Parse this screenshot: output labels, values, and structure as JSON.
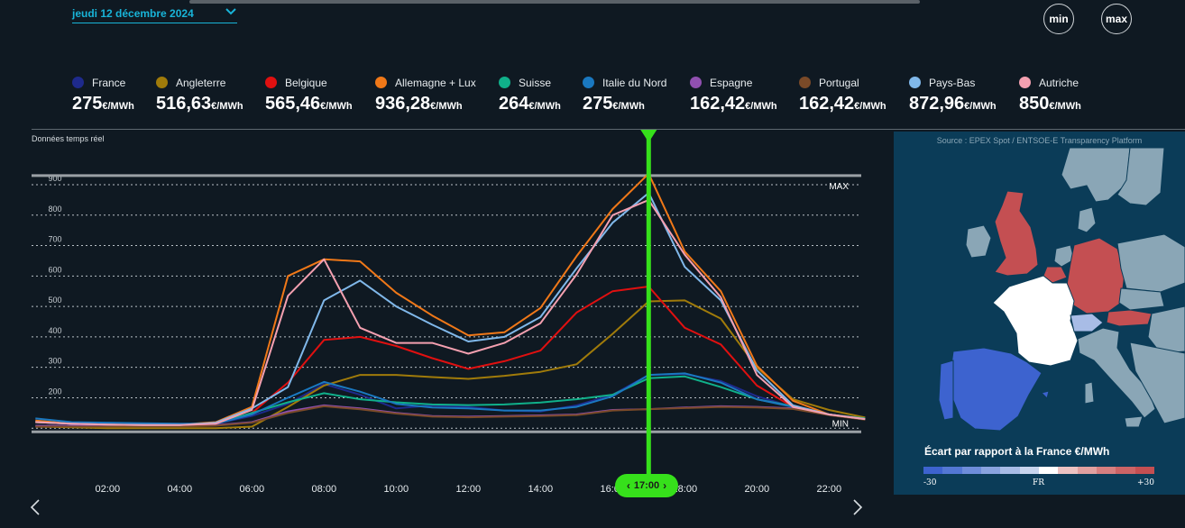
{
  "header": {
    "date_label": "jeudi 12 décembre 2024",
    "min_label": "min",
    "max_label": "max"
  },
  "colors": {
    "accent": "#18b4d8",
    "cursor": "#36e01b",
    "background": "#0f1922",
    "map_bg": "#0b3c58"
  },
  "icons": {
    "date_dropdown": "chevron-down-icon",
    "prev": "chevron-left-icon",
    "next": "chevron-right-icon"
  },
  "legend": [
    {
      "name": "France",
      "price": "275",
      "unit": "€/MWh",
      "color": "#1e2a8c"
    },
    {
      "name": "Angleterre",
      "price": "516,63",
      "unit": "€/MWh",
      "color": "#a07b0a"
    },
    {
      "name": "Belgique",
      "price": "565,46",
      "unit": "€/MWh",
      "color": "#e01010"
    },
    {
      "name": "Allemagne + Lux",
      "price": "936,28",
      "unit": "€/MWh",
      "color": "#f07818"
    },
    {
      "name": "Suisse",
      "price": "264",
      "unit": "€/MWh",
      "color": "#10b08a"
    },
    {
      "name": "Italie du Nord",
      "price": "275",
      "unit": "€/MWh",
      "color": "#1a78c0"
    },
    {
      "name": "Espagne",
      "price": "162,42",
      "unit": "€/MWh",
      "color": "#9050b0"
    },
    {
      "name": "Portugal",
      "price": "162,42",
      "unit": "€/MWh",
      "color": "#7a4a28"
    },
    {
      "name": "Pays-Bas",
      "price": "872,96",
      "unit": "€/MWh",
      "color": "#80b8ea"
    },
    {
      "name": "Autriche",
      "price": "850",
      "unit": "€/MWh",
      "color": "#f4a0b0"
    }
  ],
  "chart": {
    "note": "Données temps réel",
    "cursor_label": "17:00"
  },
  "chart_data": {
    "type": "line",
    "title": "",
    "xlabel": "",
    "ylabel": "",
    "x": [
      0,
      1,
      2,
      3,
      4,
      5,
      6,
      7,
      8,
      9,
      10,
      11,
      12,
      13,
      14,
      15,
      16,
      17,
      18,
      19,
      20,
      21,
      22,
      23
    ],
    "x_ticks": [
      "02:00",
      "04:00",
      "06:00",
      "08:00",
      "10:00",
      "12:00",
      "14:00",
      "16:00",
      "18:00",
      "20:00",
      "22:00"
    ],
    "y_ticks": [
      "200",
      "300",
      "400",
      "500",
      "600",
      "700",
      "800",
      "900"
    ],
    "ylim": [
      0,
      950
    ],
    "max_line": 930,
    "max_label": "MAX",
    "min_line": 88,
    "min_label": "MIN",
    "grid": true,
    "cursor_x": 17,
    "series": [
      {
        "name": "France",
        "color": "#1e2a8c",
        "values": [
          125,
          115,
          112,
          110,
          110,
          115,
          140,
          180,
          245,
          210,
          165,
          175,
          170,
          158,
          155,
          175,
          210,
          275,
          278,
          255,
          205,
          170,
          145,
          130
        ]
      },
      {
        "name": "Angleterre",
        "color": "#a07b0a",
        "values": [
          105,
          103,
          100,
          100,
          100,
          100,
          105,
          170,
          240,
          275,
          275,
          268,
          262,
          272,
          285,
          310,
          410,
          516.63,
          520,
          460,
          300,
          195,
          160,
          135
        ]
      },
      {
        "name": "Belgique",
        "color": "#e01010",
        "values": [
          120,
          115,
          112,
          110,
          110,
          115,
          150,
          250,
          390,
          400,
          370,
          330,
          295,
          320,
          355,
          480,
          550,
          565.46,
          430,
          375,
          240,
          170,
          145,
          130
        ]
      },
      {
        "name": "Allemagne + Lux",
        "color": "#f07818",
        "values": [
          125,
          115,
          112,
          112,
          112,
          120,
          170,
          600,
          655,
          648,
          545,
          470,
          405,
          415,
          495,
          665,
          820,
          936.28,
          680,
          550,
          305,
          190,
          145,
          130
        ]
      },
      {
        "name": "Suisse",
        "color": "#10b08a",
        "values": [
          120,
          115,
          112,
          110,
          110,
          115,
          150,
          185,
          215,
          195,
          185,
          178,
          176,
          178,
          184,
          195,
          210,
          264,
          270,
          235,
          195,
          172,
          145,
          132
        ]
      },
      {
        "name": "Italie du Nord",
        "color": "#1a78c0",
        "values": [
          132,
          120,
          118,
          116,
          115,
          115,
          145,
          200,
          252,
          220,
          180,
          168,
          165,
          158,
          158,
          170,
          205,
          275,
          280,
          250,
          195,
          170,
          145,
          130
        ]
      },
      {
        "name": "Espagne",
        "color": "#9050b0",
        "values": [
          108,
          108,
          108,
          108,
          108,
          110,
          120,
          155,
          175,
          165,
          150,
          140,
          138,
          140,
          142,
          145,
          160,
          162.42,
          168,
          172,
          170,
          165,
          145,
          130
        ]
      },
      {
        "name": "Portugal",
        "color": "#7a4a28",
        "values": [
          105,
          105,
          105,
          105,
          105,
          108,
          118,
          150,
          172,
          162,
          148,
          138,
          136,
          138,
          140,
          143,
          158,
          162.42,
          166,
          170,
          168,
          163,
          143,
          128
        ]
      },
      {
        "name": "Pays-Bas",
        "color": "#80b8ea",
        "values": [
          120,
          115,
          112,
          110,
          110,
          118,
          165,
          235,
          520,
          585,
          500,
          440,
          385,
          400,
          465,
          625,
          775,
          872.96,
          630,
          520,
          290,
          175,
          145,
          130
        ]
      },
      {
        "name": "Autriche",
        "color": "#f4a0b0",
        "values": [
          120,
          115,
          112,
          110,
          110,
          115,
          160,
          535,
          655,
          430,
          380,
          380,
          345,
          380,
          445,
          605,
          800,
          850,
          670,
          530,
          275,
          170,
          145,
          130
        ]
      }
    ]
  },
  "map": {
    "source": "Source : EPEX Spot / ENTSOE-E Transparency Platform",
    "title": "Écart par rapport à la France €/MWh",
    "scale_min": "-30",
    "scale_mid": "FR",
    "scale_max": "+30",
    "scale_colors": [
      "#3d63cf",
      "#5377d4",
      "#6e8dda",
      "#89a3df",
      "#a8bce6",
      "#c8d5ee",
      "#ffffff",
      "#ecc2c2",
      "#e0a0a0",
      "#d67f80",
      "#cc6466",
      "#c44f52"
    ]
  }
}
